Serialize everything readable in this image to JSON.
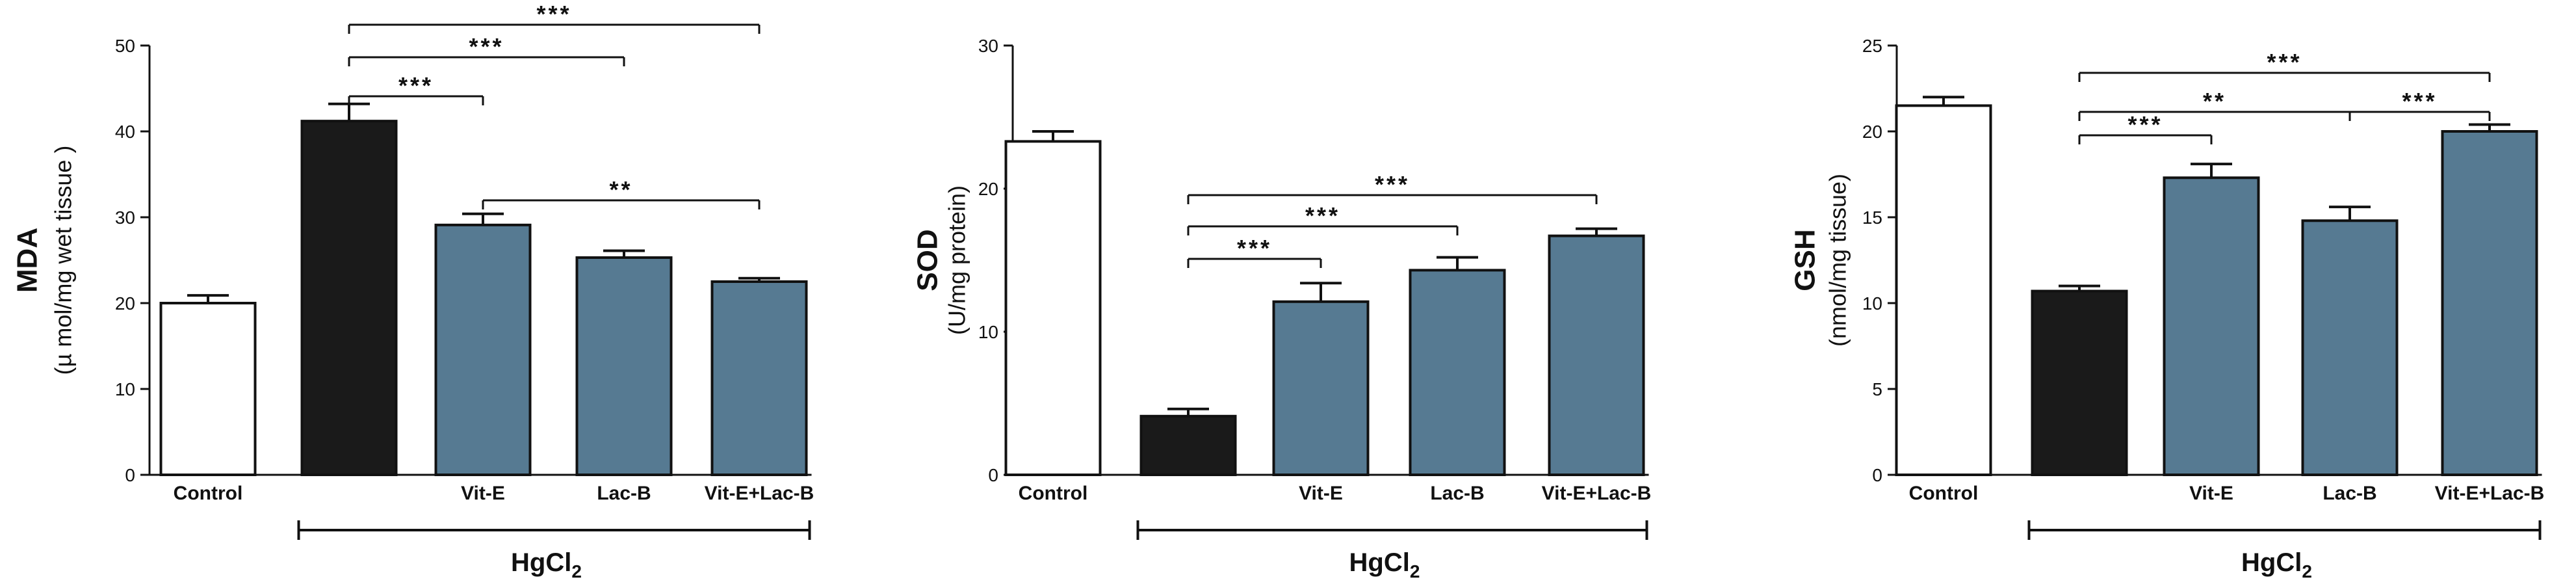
{
  "colors": {
    "control": "#ffffff",
    "hgcl2": "#1a1a1a",
    "treatment": "#567a92",
    "stroke": "#111111"
  },
  "chart_data": [
    {
      "type": "bar",
      "ylabel": "MDA",
      "yunit": "(µ mol/mg wet tissue )",
      "ylim": [
        0,
        50
      ],
      "yticks": [
        0,
        10,
        20,
        30,
        40,
        50
      ],
      "categories": [
        "Control",
        "",
        "Vit-E",
        "Lac-B",
        "Vit-E+Lac-B"
      ],
      "values": [
        20,
        41.2,
        29.1,
        25.3,
        22.5
      ],
      "errors": [
        0.9,
        2.0,
        1.3,
        0.8,
        0.4
      ],
      "group": {
        "label": "HgCl",
        "subscript": "2",
        "from": 1,
        "to": 4
      },
      "significance": [
        {
          "from": 1,
          "to": 2,
          "label": "***"
        },
        {
          "from": 1,
          "to": 3,
          "label": "***"
        },
        {
          "from": 1,
          "to": 4,
          "label": "***"
        },
        {
          "from": 2,
          "to": 4,
          "label": "**"
        }
      ]
    },
    {
      "type": "bar",
      "ylabel": "SOD",
      "yunit": "(U/mg protein)",
      "ylim": [
        0,
        30
      ],
      "yticks": [
        0,
        10,
        20,
        30
      ],
      "categories": [
        "Control",
        "",
        "Vit-E",
        "Lac-B",
        "Vit-E+Lac-B"
      ],
      "values": [
        23.3,
        4.1,
        12.1,
        14.3,
        16.7
      ],
      "errors": [
        0.7,
        0.5,
        1.3,
        0.9,
        0.5
      ],
      "group": {
        "label": "HgCl",
        "subscript": "2",
        "from": 1,
        "to": 4
      },
      "significance": [
        {
          "from": 1,
          "to": 2,
          "label": "***"
        },
        {
          "from": 1,
          "to": 3,
          "label": "***"
        },
        {
          "from": 1,
          "to": 4,
          "label": "***"
        }
      ]
    },
    {
      "type": "bar",
      "ylabel": "GSH",
      "yunit": "(nmol/mg tissue)",
      "ylim": [
        0,
        25
      ],
      "yticks": [
        0,
        5,
        10,
        15,
        20,
        25
      ],
      "categories": [
        "Control",
        "",
        "Vit-E",
        "Lac-B",
        "Vit-E+Lac-B"
      ],
      "values": [
        21.5,
        10.7,
        17.3,
        14.8,
        20.0
      ],
      "errors": [
        0.5,
        0.3,
        0.8,
        0.8,
        0.4
      ],
      "group": {
        "label": "HgCl",
        "subscript": "2",
        "from": 1,
        "to": 4
      },
      "significance": [
        {
          "from": 1,
          "to": 2,
          "label": "***"
        },
        {
          "from": 1,
          "to": 3,
          "label": "**"
        },
        {
          "from": 1,
          "to": 4,
          "label": "***"
        },
        {
          "from": 3,
          "to": 4,
          "label": "***"
        }
      ]
    }
  ]
}
